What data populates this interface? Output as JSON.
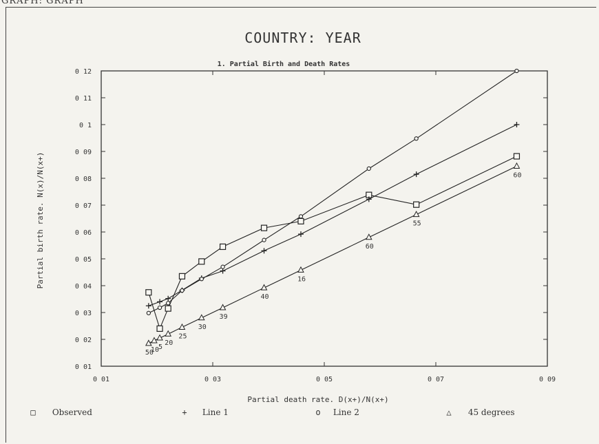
{
  "header_text": "GRAPH: GRAPH",
  "chart_data": {
    "type": "line",
    "title": "COUNTRY:  YEAR",
    "subtitle": "1. Partial Birth and Death Rates",
    "xlabel": "Partial death rate. D(x+)/N(x+)",
    "ylabel": "Partial birth rate. N(x)/N(x+)",
    "xlim": [
      0.01,
      0.09
    ],
    "ylim": [
      0.01,
      0.12
    ],
    "xticks": [
      0.01,
      0.03,
      0.05,
      0.07,
      0.09
    ],
    "xtick_labels": [
      "0 01",
      "0 03",
      "0 05",
      "0 07",
      "0 09"
    ],
    "yticks": [
      0.01,
      0.02,
      0.03,
      0.04,
      0.05,
      0.06,
      0.07,
      0.08,
      0.09,
      0.1,
      0.11,
      0.12
    ],
    "ytick_labels": [
      "0 01",
      "0 02",
      "0 03",
      "0 04",
      "0 05",
      "0 06",
      "0 07",
      "0 08",
      "0 09",
      "0 1",
      "0 11",
      "0 12"
    ],
    "series": [
      {
        "name": "Observed",
        "marker": "square",
        "x": [
          0.0185,
          0.0205,
          0.022,
          0.0245,
          0.028,
          0.0318,
          0.0392,
          0.0458,
          0.058,
          0.0665,
          0.0845
        ],
        "y": [
          0.0375,
          0.024,
          0.0315,
          0.0435,
          0.049,
          0.0545,
          0.0615,
          0.064,
          0.0738,
          0.0702,
          0.0882
        ]
      },
      {
        "name": "Line 1",
        "marker": "plus",
        "x": [
          0.0185,
          0.0205,
          0.022,
          0.0245,
          0.028,
          0.0318,
          0.0392,
          0.0458,
          0.058,
          0.0665,
          0.0845
        ],
        "y": [
          0.0325,
          0.034,
          0.0352,
          0.0383,
          0.0428,
          0.0455,
          0.053,
          0.0592,
          0.0722,
          0.0815,
          0.1
        ]
      },
      {
        "name": "Line 2",
        "marker": "circle",
        "x": [
          0.0185,
          0.0205,
          0.022,
          0.0245,
          0.028,
          0.0318,
          0.0392,
          0.0458,
          0.058,
          0.0665,
          0.0845
        ],
        "y": [
          0.0298,
          0.0318,
          0.0335,
          0.0382,
          0.0425,
          0.047,
          0.057,
          0.0658,
          0.0836,
          0.0948,
          0.12
        ]
      },
      {
        "name": "45 degrees",
        "marker": "triangle",
        "x": [
          0.0185,
          0.0195,
          0.0205,
          0.022,
          0.0245,
          0.028,
          0.0318,
          0.0392,
          0.0458,
          0.058,
          0.0665,
          0.0845
        ],
        "y": [
          0.0185,
          0.0195,
          0.0205,
          0.022,
          0.0245,
          0.028,
          0.0318,
          0.0392,
          0.0458,
          0.058,
          0.0665,
          0.0845
        ]
      }
    ],
    "annotations": [
      {
        "text": "60",
        "x": 0.0845,
        "y": 0.0845
      },
      {
        "text": "55",
        "x": 0.0665,
        "y": 0.0665
      },
      {
        "text": "60",
        "x": 0.058,
        "y": 0.058
      },
      {
        "text": "16",
        "x": 0.0458,
        "y": 0.0458
      },
      {
        "text": "40",
        "x": 0.0392,
        "y": 0.0392
      },
      {
        "text": "39",
        "x": 0.0318,
        "y": 0.0318
      },
      {
        "text": "30",
        "x": 0.028,
        "y": 0.028
      },
      {
        "text": "25",
        "x": 0.0245,
        "y": 0.0245
      },
      {
        "text": "20",
        "x": 0.022,
        "y": 0.022
      },
      {
        "text": "5",
        "x": 0.0205,
        "y": 0.0205
      },
      {
        "text": "10",
        "x": 0.0195,
        "y": 0.0195
      },
      {
        "text": "50",
        "x": 0.0185,
        "y": 0.0185
      }
    ],
    "grid": false,
    "legend_position": "bottom"
  },
  "legend": [
    {
      "symbol": "□",
      "label": "Observed"
    },
    {
      "symbol": "+",
      "label": "Line 1"
    },
    {
      "symbol": "o",
      "label": "Line 2"
    },
    {
      "symbol": "△",
      "label": "45 degrees"
    }
  ]
}
